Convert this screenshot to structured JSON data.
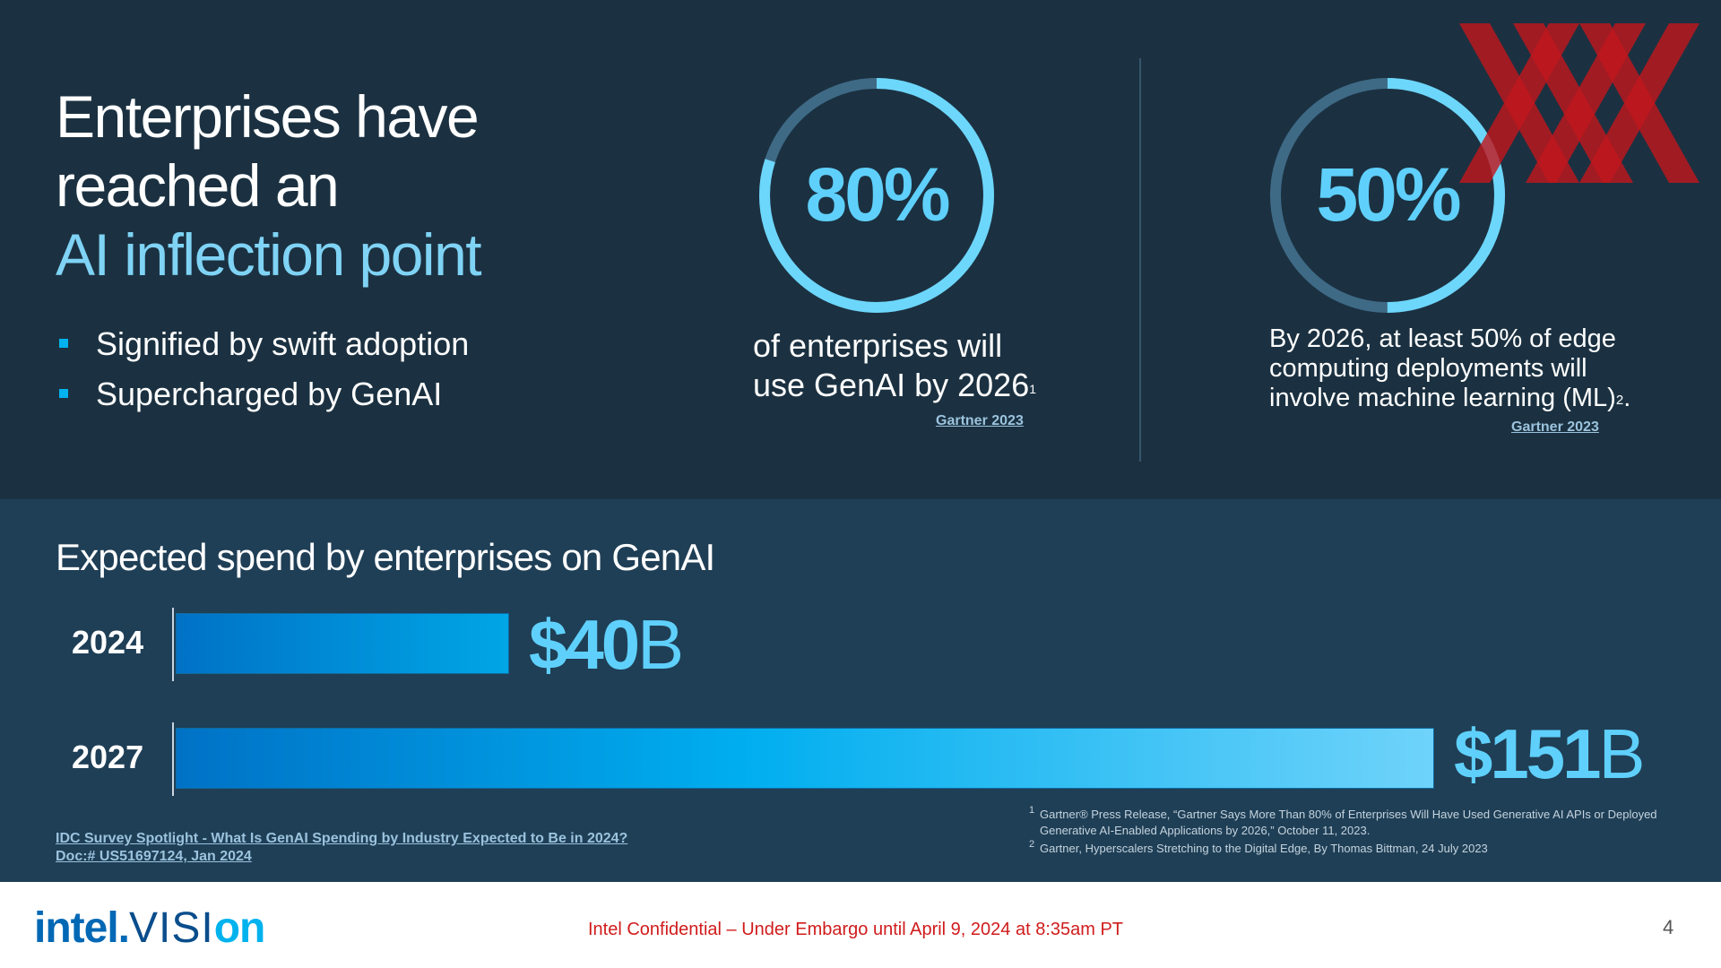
{
  "headline": {
    "line1": "Enterprises have",
    "line2": "reached an",
    "line3": "AI inflection point"
  },
  "bullets": [
    "Signified by swift adoption",
    "Supercharged by GenAI"
  ],
  "stats": [
    {
      "value_text": "80%",
      "fraction": 0.8,
      "line1": "of enterprises will",
      "line2": "use GenAI by 2026",
      "ref": "1",
      "source": "Gartner 2023"
    },
    {
      "value_text": "50%",
      "fraction": 0.5,
      "line1": "By 2026, at least 50% of edge",
      "line2": "computing deployments will",
      "line3": "involve machine learning (ML)",
      "ref": "2",
      "tail": ".",
      "source": "Gartner 2023"
    }
  ],
  "spend": {
    "title": "Expected spend by enterprises on GenAI",
    "bars": [
      {
        "year": "2024",
        "value": 40,
        "amount": "$40",
        "unit": "B"
      },
      {
        "year": "2027",
        "value": 151,
        "amount": "$151",
        "unit": "B"
      }
    ],
    "max_value": 151,
    "source_line1": "IDC Survey Spotlight - What Is GenAI Spending by Industry Expected to Be in 2024?",
    "source_line2": "Doc:# US51697124, Jan 2024"
  },
  "footnotes": [
    {
      "num": "1",
      "text": "Gartner® Press Release, “Gartner Says More Than 80% of Enterprises Will Have Used Generative AI APIs or Deployed Generative AI-Enabled Applications by 2026,” October 11, 2023."
    },
    {
      "num": "2",
      "text": "Gartner, Hyperscalers Stretching to the Digital Edge, By Thomas Bittman, 24 July 2023"
    }
  ],
  "footer": {
    "logo_intel": "intel.",
    "logo_visi": "VISI",
    "logo_on": "on",
    "confidential": "Intel Confidential – Under Embargo until April 9, 2024  at 8:35am PT",
    "page_number": "4"
  },
  "colors": {
    "ring_fill": "#6dd6fb",
    "ring_track": "#3f6a86",
    "accent": "#7fd3f5",
    "value_text": "#5fd0fb",
    "xx_mark": "#c0171d"
  }
}
